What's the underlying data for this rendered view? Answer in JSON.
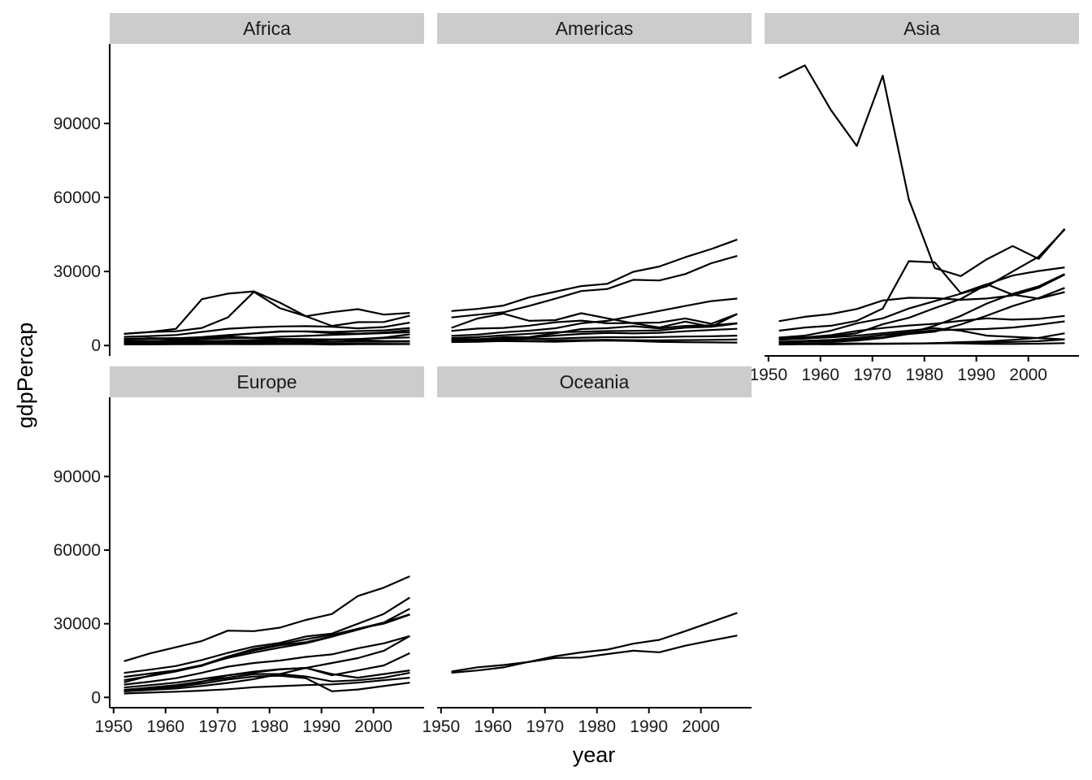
{
  "chart_data": {
    "type": "line",
    "facet_by": "continent",
    "xlabel": "year",
    "ylabel": "gdpPercap",
    "xlim": [
      1952,
      2007
    ],
    "ylim": [
      0,
      114000
    ],
    "x_ticks": [
      1950,
      1960,
      1970,
      1980,
      1990,
      2000
    ],
    "y_ticks": [
      0,
      30000,
      60000,
      90000
    ],
    "x_ticks_labels": [
      "1950",
      "1960",
      "1970",
      "1980",
      "1990",
      "2000"
    ],
    "y_ticks_labels": [
      "0",
      "30000",
      "60000",
      "90000"
    ],
    "x": [
      1952,
      1957,
      1962,
      1967,
      1972,
      1977,
      1982,
      1987,
      1992,
      1997,
      2002,
      2007
    ],
    "line_color": "#000000",
    "strip_color": "#cccccc",
    "facets": [
      {
        "title": "Africa",
        "series": [
          {
            "values": [
              4725,
              5487,
              6757,
              18773,
              21011,
              21951,
              17364,
              11864,
              13522,
              14723,
              12522,
              13206
            ]
          },
          {
            "values": [
              2449,
              3014,
              2551,
              3247,
              4183,
              4910,
              5745,
              5681,
              5023,
              4797,
              5288,
              6223
            ]
          },
          {
            "values": [
              4725,
              5487,
              5768,
              7114,
              11402,
              21745,
              15113,
              11864,
              7955,
              9467,
              9534,
              12057
            ]
          },
          {
            "values": [
              3520,
              3828,
              4269,
              5523,
              6785,
              7356,
              7733,
              7845,
              7608,
              6961,
              7479,
              9270
            ]
          },
          {
            "values": [
              2385,
              2673,
              2957,
              3437,
              4212,
              4903,
              5629,
              5733,
              5476,
              5830,
              6151,
              7092
            ]
          },
          {
            "values": [
              1688,
              1642,
              1567,
              1533,
              1606,
              1776,
              1858,
              1770,
              1575,
              1539,
              1503,
              1581
            ]
          },
          {
            "values": [
              851,
              918,
              983,
              1135,
              1254,
              1349,
              1649,
              2115,
              2386,
              2580,
              3200,
              4513
            ]
          },
          {
            "values": [
              1418,
              1483,
              1546,
              1766,
              1937,
              2224,
              2368,
              2481,
              2432,
              2653,
              2975,
              3261
            ]
          },
          {
            "values": [
              1726,
              1832,
              2096,
              2528,
              2902,
              3144,
              3566,
              3914,
              4321,
              4672,
              5009,
              5383
            ]
          },
          {
            "values": [
              2669,
              2865,
              3021,
              3020,
              3695,
              3082,
              2682,
              2571,
              2421,
              2186,
              1812,
              1713
            ]
          },
          {
            "values": [
              781,
              946,
              1058,
              1239,
              1465,
              1606,
              1665,
              1571,
              1540,
              1592,
              1733,
              1735
            ]
          },
          {
            "values": [
              444,
              427,
              495,
              556,
              566,
              556,
              578,
              573,
              421,
              515,
              531,
              579
            ]
          },
          {
            "values": [
              720,
              760,
              1000,
              1200,
              1100,
              1100,
              1000,
              900,
              800,
              700,
              660,
              640
            ]
          }
        ]
      },
      {
        "title": "Americas",
        "series": [
          {
            "values": [
              13990,
              14847,
              16173,
              19530,
              21806,
              24073,
              25010,
              29884,
              32004,
              35767,
              39097,
              42952
            ]
          },
          {
            "values": [
              11367,
              12490,
              13462,
              16077,
              18971,
              22091,
              22899,
              26627,
              26343,
              28955,
              33329,
              36319
            ]
          },
          {
            "values": [
              7144,
              10950,
              12900,
              10000,
              10300,
              13100,
              11000,
              9000,
              7300,
              9700,
              7600,
              12800
            ]
          },
          {
            "values": [
              5911,
              6857,
              7133,
              8053,
              9444,
              10079,
              8998,
              9140,
              9308,
              10967,
              8798,
              12779
            ]
          },
          {
            "values": [
              3940,
              4400,
              5400,
              6000,
              7000,
              9000,
              10000,
              12000,
              14000,
              16000,
              18000,
              19000
            ]
          },
          {
            "values": [
              2108,
              2487,
              3337,
              3430,
              4985,
              6660,
              7031,
              7807,
              6950,
              7958,
              8131,
              9066
            ]
          },
          {
            "values": [
              3048,
              3421,
              4128,
              4755,
              5383,
              5584,
              5840,
              5956,
              6152,
              7221,
              7584,
              8948
            ]
          },
          {
            "values": [
              2428,
              2617,
              2750,
              3243,
              4031,
              4697,
              5076,
              4930,
              5145,
              5773,
              6288,
              6765
            ]
          },
          {
            "values": [
              2173,
              2335,
              2378,
              2611,
              2811,
              3162,
              3380,
              3326,
              3437,
              3629,
              3746,
              3990
            ]
          },
          {
            "values": [
              1398,
              1544,
              1812,
              1802,
              2049,
              2200,
              2310,
              2150,
              2100,
              2200,
              2300,
              2450
            ]
          },
          {
            "values": [
              1840,
              1726,
              1797,
              1655,
              1500,
              1870,
              2010,
              1823,
              1456,
              1341,
              1270,
              1202
            ]
          }
        ]
      },
      {
        "title": "Asia",
        "series": [
          {
            "values": [
              108382,
              113523,
              95458,
              80895,
              109348,
              59265,
              31354,
              28118,
              34932,
              40301,
              35110,
              47307
            ]
          },
          {
            "values": [
              9867,
              11636,
              12753,
              14805,
              18268,
              19340,
              19211,
              18524,
              19035,
              20292,
              23404,
              28718
            ]
          },
          {
            "values": [
              3217,
              4000,
              6000,
              9000,
              11000,
              15000,
              18000,
              21000,
              24000,
              30000,
              36000,
              47000
            ]
          },
          {
            "values": [
              2315,
              2843,
              3675,
              4978,
              8597,
              11210,
              15169,
              18862,
              24769,
              28377,
              30209,
              31656
            ]
          },
          {
            "values": [
              6000,
              7300,
              8000,
              10000,
              15000,
              34168,
              33693,
              21198,
              24841,
              20586,
              19014,
              21655
            ]
          },
          {
            "values": [
              1545,
              1827,
              2130,
              2630,
              3300,
              5000,
              8000,
              12000,
              17000,
              21000,
              24000,
              29000
            ]
          },
          {
            "values": [
              3035,
              3291,
              4187,
              5907,
              7105,
              8100,
              8800,
              10000,
              11000,
              10500,
              10800,
              12000
            ]
          },
          {
            "values": [
              1400,
              1900,
              2300,
              3100,
              4200,
              5300,
              6100,
              6500,
              6700,
              7300,
              8400,
              9800
            ]
          },
          {
            "values": [
              1030,
              1487,
              1536,
              2029,
              3030,
              4657,
              5622,
              8533,
              12104,
              15993,
              19233,
              23348
            ]
          },
          {
            "values": [
              2500,
              2900,
              3300,
              4000,
              5000,
              6000,
              7000,
              6000,
              4000,
              3500,
              3000,
              2500
            ]
          },
          {
            "values": [
              400,
              575,
              487,
              612,
              677,
              741,
              962,
              1379,
              1655,
              2289,
              3119,
              4959
            ]
          },
          {
            "values": [
              547,
              590,
              658,
              700,
              725,
              824,
              855,
              977,
              1164,
              1458,
              1747,
              2452
            ]
          },
          {
            "values": [
              779,
              820,
              853,
              836,
              740,
              786,
              978,
              852,
              649,
              635,
              727,
              975
            ]
          }
        ]
      },
      {
        "title": "Europe",
        "series": [
          {
            "values": [
              14734,
              17909,
              20431,
              22966,
              27195,
              26982,
              28397,
              31541,
              33965,
              41283,
              44684,
              49357
            ]
          },
          {
            "values": [
              9980,
              11283,
              12790,
              15230,
              18152,
              20700,
              22210,
              24800,
              26000,
              30000,
              34000,
              40676
            ]
          },
          {
            "values": [
              8343,
              9714,
              10991,
              13149,
              16672,
              19118,
              21210,
              22524,
              24755,
              27561,
              30460,
              33860
            ]
          },
          {
            "values": [
              7029,
              8662,
              10560,
              12999,
              16107,
              18292,
              20294,
              22066,
              24704,
              27926,
              30487,
              36126
            ]
          },
          {
            "values": [
              6137,
              8843,
              10750,
              12835,
              16662,
              19749,
              21598,
              23688,
              25470,
              27989,
              30036,
              33692
            ]
          },
          {
            "values": [
              5200,
              6400,
              7800,
              10000,
              12500,
              14000,
              15000,
              16500,
              17500,
              20000,
              22000,
              25000
            ]
          },
          {
            "values": [
              3068,
              3774,
              4728,
              6361,
              9023,
              10172,
              11399,
              12036,
              9000,
              11000,
              13000,
              18000
            ]
          },
          {
            "values": [
              4000,
              5000,
              6000,
              7500,
              9000,
              10500,
              11500,
              12000,
              9500,
              8000,
              9500,
              11000
            ]
          },
          {
            "values": [
              2444,
              3009,
              3623,
              4649,
              5907,
              7450,
              9500,
              12000,
              14000,
              16000,
              19000,
              25000
            ]
          },
          {
            "values": [
              1601,
              1942,
              2312,
              2760,
              3313,
              4129,
              4577,
              5000,
              5300,
              6000,
              7000,
              8000
            ]
          },
          {
            "values": [
              3000,
              4000,
              5000,
              6500,
              8000,
              9500,
              9500,
              8500,
              6500,
              7000,
              8000,
              10000
            ]
          },
          {
            "values": [
              2800,
              3400,
              4300,
              5600,
              7300,
              8500,
              8800,
              7800,
              2500,
              3200,
              4600,
              6000
            ]
          }
        ]
      },
      {
        "title": "Oceania",
        "series": [
          {
            "values": [
              10040,
              10950,
              12218,
              14526,
              16788,
              18334,
              19477,
              21889,
              23425,
              26998,
              30688,
              34435
            ]
          },
          {
            "values": [
              10557,
              12247,
              13176,
              14464,
              16046,
              16234,
              17632,
              19007,
              18363,
              21050,
              23190,
              25185
            ]
          }
        ]
      }
    ]
  }
}
